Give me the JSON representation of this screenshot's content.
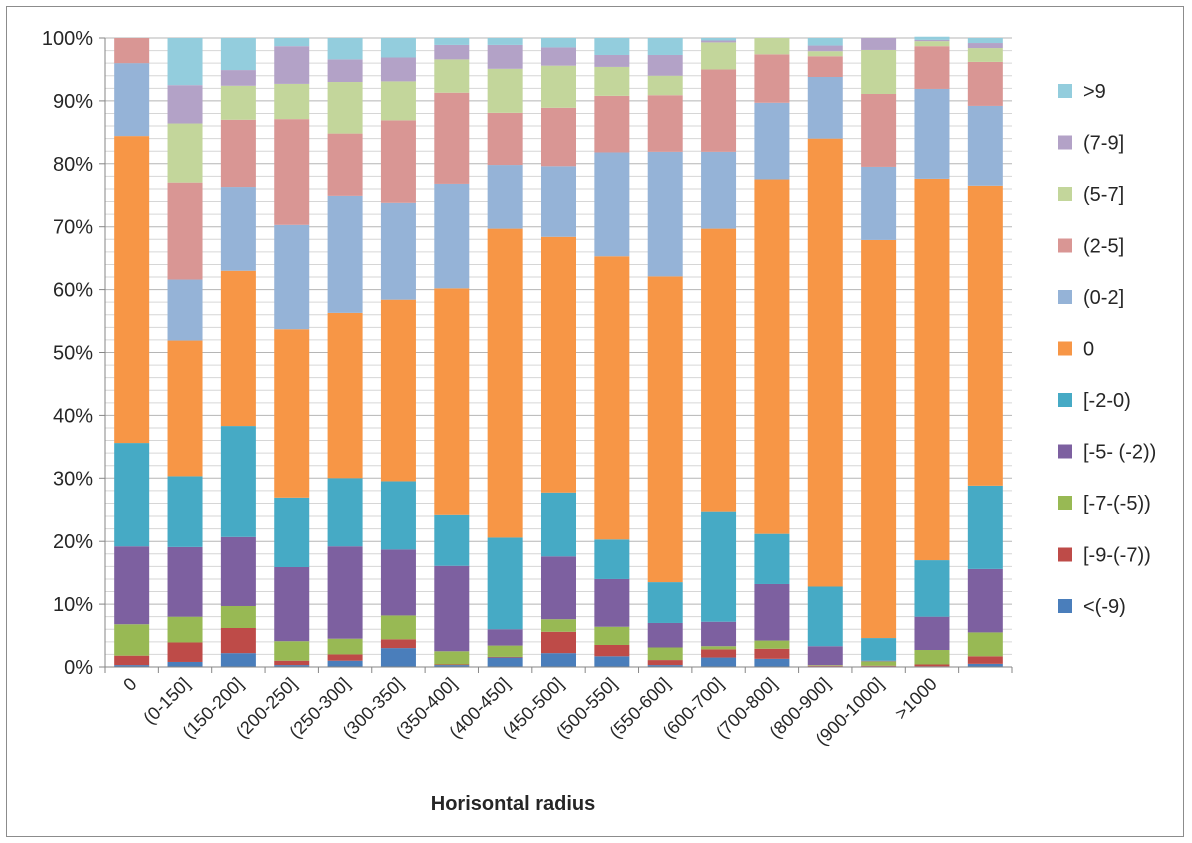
{
  "chart_data": {
    "type": "bar",
    "stacked": true,
    "percent": true,
    "title": "",
    "xlabel": "Horisontal radius",
    "ylabel": "",
    "ylim": [
      0,
      100
    ],
    "yticks": [
      "0%",
      "10%",
      "20%",
      "30%",
      "40%",
      "50%",
      "60%",
      "70%",
      "80%",
      "90%",
      "100%"
    ],
    "categories": [
      "0",
      "(0-150]",
      "(150-200]",
      "(200-250]",
      "(250-300]",
      "(300-350]",
      "(350-400]",
      "(400-450]",
      "(450-500]",
      "(500-550]",
      "(550-600]",
      "(600-700]",
      "(700-800]",
      "(800-900]",
      "(900-1000]",
      ">1000",
      ""
    ],
    "legend_position": "right",
    "grid": true,
    "series": [
      {
        "name": "<(-9)",
        "color": "#4a7ebb",
        "values": [
          0.3,
          0.8,
          2.2,
          0.3,
          1.0,
          3.0,
          0.3,
          1.5,
          2.2,
          1.7,
          0.3,
          1.5,
          1.3,
          0.1,
          0.1,
          0.1,
          0.5
        ]
      },
      {
        "name": "[-9-(-7))",
        "color": "#be4b48",
        "values": [
          1.5,
          3.1,
          4.0,
          0.7,
          1.0,
          1.4,
          0.1,
          0.1,
          3.4,
          1.8,
          0.8,
          1.3,
          1.6,
          0.1,
          0.1,
          0.3,
          1.2
        ]
      },
      {
        "name": "[-7-(-5))",
        "color": "#98b954",
        "values": [
          5.0,
          4.1,
          3.5,
          3.1,
          2.5,
          3.8,
          2.1,
          1.8,
          2.0,
          2.9,
          2.0,
          0.5,
          1.3,
          0.1,
          0.7,
          2.3,
          3.8
        ]
      },
      {
        "name": "[-5- (-2))",
        "color": "#7d60a0",
        "values": [
          12.4,
          11.1,
          11.0,
          11.8,
          14.7,
          10.5,
          13.6,
          2.6,
          10.0,
          7.6,
          3.9,
          3.9,
          9.0,
          3.0,
          0.1,
          5.3,
          10.1
        ]
      },
      {
        "name": "[-2-0)",
        "color": "#46aac5",
        "values": [
          16.4,
          11.2,
          17.6,
          11.0,
          10.8,
          10.8,
          8.1,
          14.6,
          10.1,
          6.3,
          6.5,
          17.5,
          8.0,
          9.5,
          3.6,
          9.0,
          13.2
        ]
      },
      {
        "name": "0",
        "color": "#f79646",
        "values": [
          48.8,
          21.6,
          24.7,
          26.8,
          26.3,
          28.9,
          36.0,
          49.1,
          40.7,
          45.0,
          48.6,
          45.0,
          56.3,
          71.2,
          63.3,
          60.6,
          47.7
        ]
      },
      {
        "name": "(0-2]",
        "color": "#95b3d7",
        "values": [
          11.6,
          9.7,
          13.3,
          16.6,
          18.6,
          15.4,
          16.6,
          10.1,
          11.2,
          16.5,
          19.8,
          12.2,
          12.2,
          9.8,
          11.6,
          14.3,
          12.7
        ]
      },
      {
        "name": "(2-5]",
        "color": "#d99694",
        "values": [
          4.0,
          15.4,
          10.7,
          16.8,
          9.9,
          13.1,
          14.5,
          8.3,
          9.3,
          9.0,
          9.0,
          13.1,
          7.7,
          3.3,
          11.6,
          6.8,
          7.0
        ]
      },
      {
        "name": "(5-7]",
        "color": "#c3d69b",
        "values": [
          0.0,
          9.4,
          5.4,
          5.6,
          8.2,
          6.2,
          5.3,
          7.0,
          6.7,
          4.6,
          3.1,
          4.3,
          2.6,
          0.8,
          7.0,
          0.8,
          2.2
        ]
      },
      {
        "name": "(7-9]",
        "color": "#b3a2c7",
        "values": [
          0.0,
          6.1,
          2.5,
          6.0,
          3.6,
          3.8,
          2.3,
          3.8,
          2.9,
          1.9,
          3.3,
          0.3,
          0.0,
          0.9,
          1.9,
          0.2,
          0.8
        ]
      },
      {
        "name": ">9",
        "color": "#93cddd",
        "values": [
          0.0,
          7.5,
          5.1,
          1.3,
          3.4,
          3.1,
          1.1,
          1.1,
          1.5,
          2.7,
          2.7,
          0.4,
          0.0,
          1.2,
          0.0,
          0.5,
          0.8
        ]
      }
    ]
  }
}
